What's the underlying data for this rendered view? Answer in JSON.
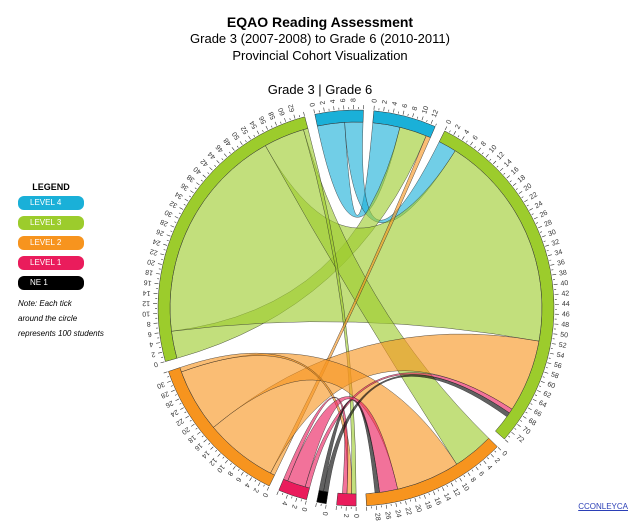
{
  "header": {
    "title": "EQAO Reading Assessment",
    "subtitle": "Grade 3 (2007-2008) to Grade 6 (2010-2011)",
    "subtitle2": "Provincial Cohort Visualization",
    "axis_label": "Grade 3 | Grade 6"
  },
  "legend": {
    "title": "LEGEND",
    "items": [
      {
        "label": "LEVEL 4",
        "color": "#1ab0d8"
      },
      {
        "label": "LEVEL 3",
        "color": "#9ccc2c"
      },
      {
        "label": "LEVEL 2",
        "color": "#f7941e"
      },
      {
        "label": "LEVEL 1",
        "color": "#ea1c5c"
      },
      {
        "label": "NE 1",
        "color": "#000000"
      }
    ],
    "note_lines": [
      "Note: Each tick",
      "around the circle",
      "represents 100 students"
    ]
  },
  "credit": "CCONLEYCA",
  "chart_data": {
    "type": "chord",
    "title": "EQAO Reading Assessment",
    "unit": "hundreds of students (each tick = 100 students)",
    "groups": [
      {
        "id": "g3_L4",
        "side": "Grade 3",
        "level": "LEVEL 4",
        "color": "#1ab0d8",
        "size": 10,
        "tick_labels": [
          "0",
          "2",
          "4",
          "6",
          "8"
        ]
      },
      {
        "id": "g6_L4",
        "side": "Grade 6",
        "level": "LEVEL 4",
        "color": "#1ab0d8",
        "size": 13,
        "tick_labels": [
          "0",
          "2",
          "4",
          "6",
          "8",
          "10",
          "12"
        ]
      },
      {
        "id": "g6_L3",
        "side": "Grade 6",
        "level": "LEVEL 3",
        "color": "#9ccc2c",
        "size": 74,
        "tick_labels": [
          "0",
          "2",
          "4",
          "6",
          "8",
          "10",
          "12",
          "14",
          "16",
          "18",
          "20",
          "22",
          "24",
          "26",
          "28",
          "30",
          "32",
          "34",
          "36",
          "38",
          "40",
          "42",
          "44",
          "46",
          "48",
          "50",
          "52",
          "54",
          "56",
          "58",
          "60",
          "62",
          "64",
          "66",
          "68",
          "70",
          "72"
        ]
      },
      {
        "id": "g6_L2",
        "side": "Grade 6",
        "level": "LEVEL 2",
        "color": "#f7941e",
        "size": 30,
        "tick_labels": [
          "0",
          "2",
          "4",
          "6",
          "8",
          "10",
          "12",
          "14",
          "16",
          "18",
          "20",
          "22",
          "24",
          "26",
          "28"
        ]
      },
      {
        "id": "g6_L1",
        "side": "Grade 6",
        "level": "LEVEL 1",
        "color": "#ea1c5c",
        "size": 4,
        "tick_labels": [
          "0",
          "2"
        ]
      },
      {
        "id": "g3_NE1",
        "side": "Grade 3",
        "level": "NE 1",
        "color": "#000000",
        "size": 2,
        "tick_labels": [
          "0"
        ]
      },
      {
        "id": "g3_L1",
        "side": "Grade 3",
        "level": "LEVEL 1",
        "color": "#ea1c5c",
        "size": 6,
        "tick_labels": [
          "0",
          "2",
          "4"
        ]
      },
      {
        "id": "g3_L2",
        "side": "Grade 3",
        "level": "LEVEL 2",
        "color": "#f7941e",
        "size": 32,
        "tick_labels": [
          "0",
          "2",
          "4",
          "6",
          "8",
          "10",
          "12",
          "14",
          "16",
          "18",
          "20",
          "22",
          "24",
          "26",
          "28",
          "30"
        ]
      },
      {
        "id": "g3_L3",
        "side": "Grade 3",
        "level": "LEVEL 3",
        "color": "#9ccc2c",
        "size": 64,
        "tick_labels": [
          "0",
          "2",
          "4",
          "6",
          "8",
          "10",
          "12",
          "14",
          "16",
          "18",
          "20",
          "22",
          "24",
          "26",
          "28",
          "30",
          "32",
          "34",
          "36",
          "38",
          "40",
          "42",
          "44",
          "46",
          "48",
          "50",
          "52",
          "54",
          "56",
          "58",
          "60",
          "62"
        ]
      }
    ],
    "flows": [
      {
        "from": "g3_L4",
        "to": "g6_L4",
        "value": 6
      },
      {
        "from": "g3_L4",
        "to": "g6_L3",
        "value": 4
      },
      {
        "from": "g3_L3",
        "to": "g6_L4",
        "value": 6
      },
      {
        "from": "g3_L3",
        "to": "g6_L3",
        "value": 48
      },
      {
        "from": "g3_L3",
        "to": "g6_L2",
        "value": 9
      },
      {
        "from": "g3_L3",
        "to": "g6_L1",
        "value": 1
      },
      {
        "from": "g3_L2",
        "to": "g6_L4",
        "value": 1
      },
      {
        "from": "g3_L2",
        "to": "g6_L3",
        "value": 16
      },
      {
        "from": "g3_L2",
        "to": "g6_L2",
        "value": 14
      },
      {
        "from": "g3_L2",
        "to": "g6_L1",
        "value": 1
      },
      {
        "from": "g3_L1",
        "to": "g6_L3",
        "value": 1
      },
      {
        "from": "g3_L1",
        "to": "g6_L2",
        "value": 4
      },
      {
        "from": "g3_L1",
        "to": "g6_L1",
        "value": 1
      },
      {
        "from": "g3_NE1",
        "to": "g6_L3",
        "value": 1
      },
      {
        "from": "g3_NE1",
        "to": "g6_L2",
        "value": 1
      }
    ]
  }
}
